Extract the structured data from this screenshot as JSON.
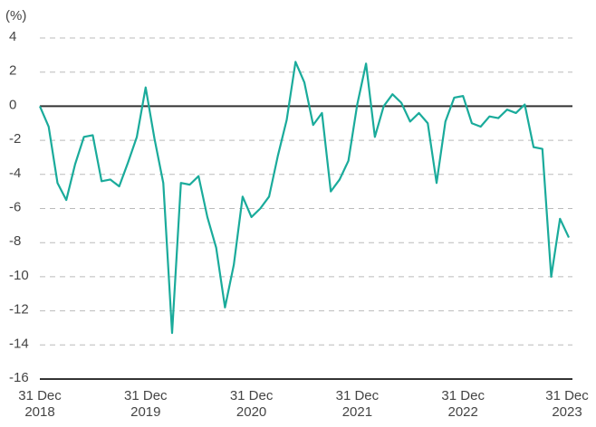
{
  "chart_data": {
    "type": "line",
    "y_label": "(%)",
    "x": [
      "2018-12",
      "2019-01",
      "2019-02",
      "2019-03",
      "2019-04",
      "2019-05",
      "2019-06",
      "2019-07",
      "2019-08",
      "2019-09",
      "2019-10",
      "2019-11",
      "2019-12",
      "2020-01",
      "2020-02",
      "2020-03",
      "2020-04",
      "2020-05",
      "2020-06",
      "2020-07",
      "2020-08",
      "2020-09",
      "2020-10",
      "2020-11",
      "2020-12",
      "2021-01",
      "2021-02",
      "2021-03",
      "2021-04",
      "2021-05",
      "2021-06",
      "2021-07",
      "2021-08",
      "2021-09",
      "2021-10",
      "2021-11",
      "2021-12",
      "2022-01",
      "2022-02",
      "2022-03",
      "2022-04",
      "2022-05",
      "2022-06",
      "2022-07",
      "2022-08",
      "2022-09",
      "2022-10",
      "2022-11",
      "2022-12",
      "2023-01",
      "2023-02",
      "2023-03",
      "2023-04",
      "2023-05",
      "2023-06",
      "2023-07",
      "2023-08",
      "2023-09",
      "2023-10",
      "2023-11",
      "2023-12"
    ],
    "series": [
      {
        "color": "#1aab9b",
        "values": [
          0,
          -1.2,
          -4.5,
          -5.5,
          -3.4,
          -1.8,
          -1.7,
          -4.4,
          -4.3,
          -4.7,
          -3.3,
          -1.8,
          1.1,
          -1.9,
          -4.5,
          -13.3,
          -4.5,
          -4.6,
          -4.1,
          -6.5,
          -8.3,
          -11.8,
          -9.3,
          -5.3,
          -6.5,
          -6.0,
          -5.3,
          -2.9,
          -0.8,
          2.6,
          1.4,
          -1.1,
          -0.4,
          -5.0,
          -4.3,
          -3.2,
          0.1,
          2.5,
          -1.8,
          0,
          0.7,
          0.2,
          -0.9,
          -0.4,
          -1.0,
          -4.5,
          -0.9,
          0.5,
          0.6,
          -1.0,
          -1.2,
          -0.6,
          -0.7,
          -0.2,
          -0.4,
          0.1,
          -2.4,
          -2.5,
          -10.0,
          -6.6,
          -7.7
        ]
      }
    ],
    "xlim": [
      "2018-12",
      "2023-12"
    ],
    "xticks": [
      {
        "value": "2018-12",
        "label": "31 Dec 2018"
      },
      {
        "value": "2019-12",
        "label": "31 Dec 2019"
      },
      {
        "value": "2020-12",
        "label": "31 Dec 2020"
      },
      {
        "value": "2021-12",
        "label": "31 Dec 2021"
      },
      {
        "value": "2022-12",
        "label": "31 Dec 2022"
      },
      {
        "value": "2023-12",
        "label": "31 Dec 2023"
      }
    ],
    "ylim": [
      -16,
      4
    ],
    "yticks": [
      4,
      2,
      0,
      -2,
      -4,
      -6,
      -8,
      -10,
      -12,
      -14,
      -16
    ],
    "grid": true
  }
}
